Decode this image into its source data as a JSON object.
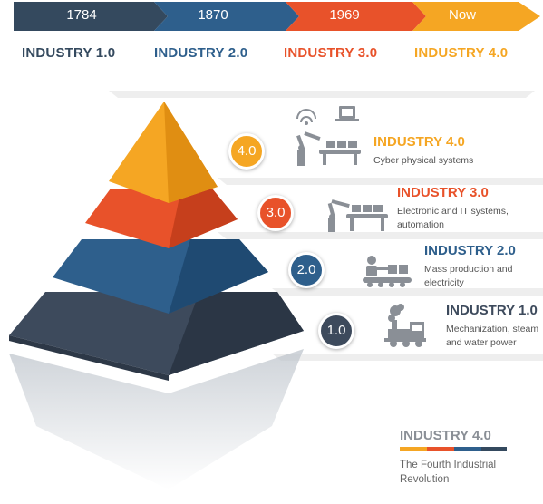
{
  "timeline": {
    "years": [
      "1784",
      "1870",
      "1969",
      "Now"
    ],
    "eras": [
      "INDUSTRY 1.0",
      "INDUSTRY 2.0",
      "INDUSTRY 3.0",
      "INDUSTRY 4.0"
    ],
    "colors": [
      "#34495e",
      "#2e5f8c",
      "#e8522a",
      "#f5a623"
    ]
  },
  "levels": [
    {
      "badge": "4.0",
      "title": "INDUSTRY 4.0",
      "desc": "Cyber physical systems",
      "color": "#f5a623",
      "icon": "robot-arm-conveyor-wifi-icon"
    },
    {
      "badge": "3.0",
      "title": "INDUSTRY 3.0",
      "desc": "Electronic and IT systems, automation",
      "color": "#e8522a",
      "icon": "robot-arm-conveyor-icon"
    },
    {
      "badge": "2.0",
      "title": "INDUSTRY 2.0",
      "desc": "Mass production and electricity",
      "color": "#2e5f8c",
      "icon": "worker-conveyor-icon"
    },
    {
      "badge": "1.0",
      "title": "INDUSTRY 1.0",
      "desc": "Mechanization, steam and water power",
      "color": "#3d4a5c",
      "icon": "steam-locomotive-icon"
    }
  ],
  "footer": {
    "title": "INDUSTRY 4.0",
    "subtitle": "The Fourth Industrial Revolution"
  }
}
